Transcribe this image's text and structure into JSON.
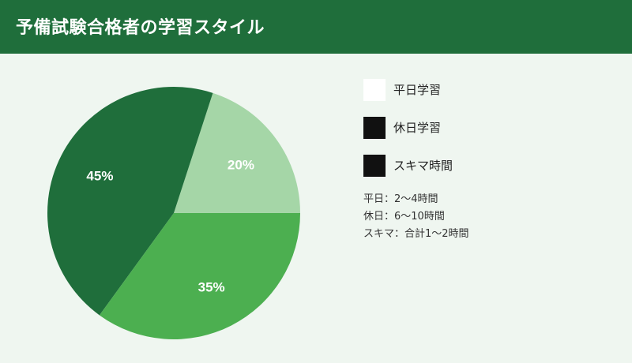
{
  "header": {
    "title": "予備試験合格者の学習スタイル",
    "background": "#1f6e3b"
  },
  "chart_data": {
    "type": "pie",
    "title": "予備試験合格者の学習スタイル",
    "slices": [
      {
        "value": 20,
        "label": "20%",
        "color": "#a5d6a7"
      },
      {
        "value": 45,
        "label": "45%",
        "color": "#1f6e3b"
      },
      {
        "value": 35,
        "label": "35%",
        "color": "#4caf50"
      }
    ],
    "start_angle_deg": 0,
    "direction": "clockwise",
    "legend_position": "right",
    "legend": [
      {
        "label": "平日学習",
        "color": "#ffffff"
      },
      {
        "label": "休日学習",
        "color": "#111111"
      },
      {
        "label": "スキマ時間",
        "color": "#111111"
      }
    ],
    "notes": [
      "平日：2〜4時間",
      "休日：6〜10時間",
      "スキマ：合計1〜2時間"
    ]
  }
}
